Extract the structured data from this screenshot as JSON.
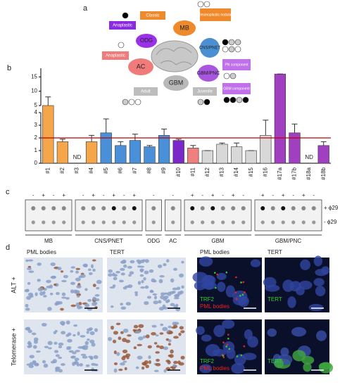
{
  "panel_labels": [
    "a",
    "b",
    "c",
    "d"
  ],
  "diagram": {
    "nodes": [
      {
        "label": "MB",
        "children": [
          "Classic",
          "Desmoplastic nodular"
        ]
      },
      {
        "label": "ODG",
        "children": [
          "Anaplastic"
        ]
      },
      {
        "label": "CNS/PNET",
        "children": []
      },
      {
        "label": "AC",
        "children": [
          "Anaplastic"
        ]
      },
      {
        "label": "GBM",
        "children": [
          "Adult",
          "Juvenile"
        ]
      },
      {
        "label": "GBM/PNC",
        "children": [
          "PN component",
          "GBM component"
        ]
      }
    ]
  },
  "chart_data": {
    "type": "bar",
    "categories": [
      "#1",
      "#2",
      "#3",
      "#4",
      "#5",
      "#6",
      "#7",
      "#8",
      "#9",
      "#10",
      "#11",
      "#12",
      "#13",
      "#14",
      "#15",
      "#16",
      "#17a",
      "#17b",
      "#18a",
      "#18b"
    ],
    "values": [
      5,
      1.7,
      null,
      1.7,
      2.4,
      1.4,
      1.8,
      1.3,
      2.2,
      1.8,
      1.2,
      1.0,
      1.5,
      1.3,
      1.0,
      2.2,
      16,
      2.4,
      null,
      1.4
    ],
    "value_labels": [
      null,
      null,
      "ND",
      null,
      null,
      null,
      null,
      null,
      null,
      null,
      null,
      null,
      null,
      null,
      null,
      null,
      null,
      null,
      "ND",
      null
    ],
    "errors": [
      3,
      0.2,
      null,
      0.5,
      1.1,
      0.3,
      0.5,
      0.1,
      0.5,
      0.1,
      0.2,
      0,
      0.1,
      0.3,
      0,
      1.2,
      0,
      0.7,
      null,
      0.3
    ],
    "colors": [
      "#f5a54a",
      "#f5a54a",
      "#f5a54a",
      "#f5a54a",
      "#4a90d9",
      "#4a90d9",
      "#4a90d9",
      "#4a90d9",
      "#4a90d9",
      "#7a28c8",
      "#f08080",
      "#d8d8d8",
      "#d8d8d8",
      "#d8d8d8",
      "#d8d8d8",
      "#d8d8d8",
      "#a040c0",
      "#a040c0",
      "#a040c0",
      "#a040c0"
    ],
    "y_segments": [
      {
        "ylim": [
          0,
          4
        ],
        "yticks": [
          0,
          1,
          2,
          3,
          4
        ]
      },
      {
        "ylim": [
          5,
          18
        ],
        "yticks": [
          5,
          10,
          15
        ]
      }
    ],
    "reference_line": 2,
    "reference_color": "#c00000"
  },
  "blot": {
    "groups": [
      {
        "name": "MB",
        "lanes": [
          "-",
          "+",
          "-",
          "+"
        ]
      },
      {
        "name": "CNS/PNET",
        "lanes": [
          "-",
          "+",
          "-",
          "+",
          "-",
          "+"
        ]
      },
      {
        "name": "ODG",
        "lanes": [
          "-"
        ]
      },
      {
        "name": "AC",
        "lanes": [
          "-"
        ]
      },
      {
        "name": "GBM",
        "lanes": [
          "+",
          "-",
          "+",
          "-",
          "+",
          "-"
        ]
      },
      {
        "name": "GBM/PNC",
        "lanes": [
          "+",
          "-",
          "+",
          "-",
          "+",
          "-"
        ]
      }
    ],
    "row_labels": [
      "+ ϕ29",
      "- ϕ29"
    ]
  },
  "micrographs": {
    "column_headers": [
      "PML bodies",
      "TERT",
      "PML bodies",
      "TERT"
    ],
    "row_labels": [
      "ALT +",
      "Telomerase +"
    ],
    "overlays": [
      [
        "TRF2",
        "PML bodies"
      ],
      [
        "TERT"
      ],
      [
        "TRF2",
        "PML bodies"
      ],
      [
        "TERT"
      ]
    ]
  }
}
